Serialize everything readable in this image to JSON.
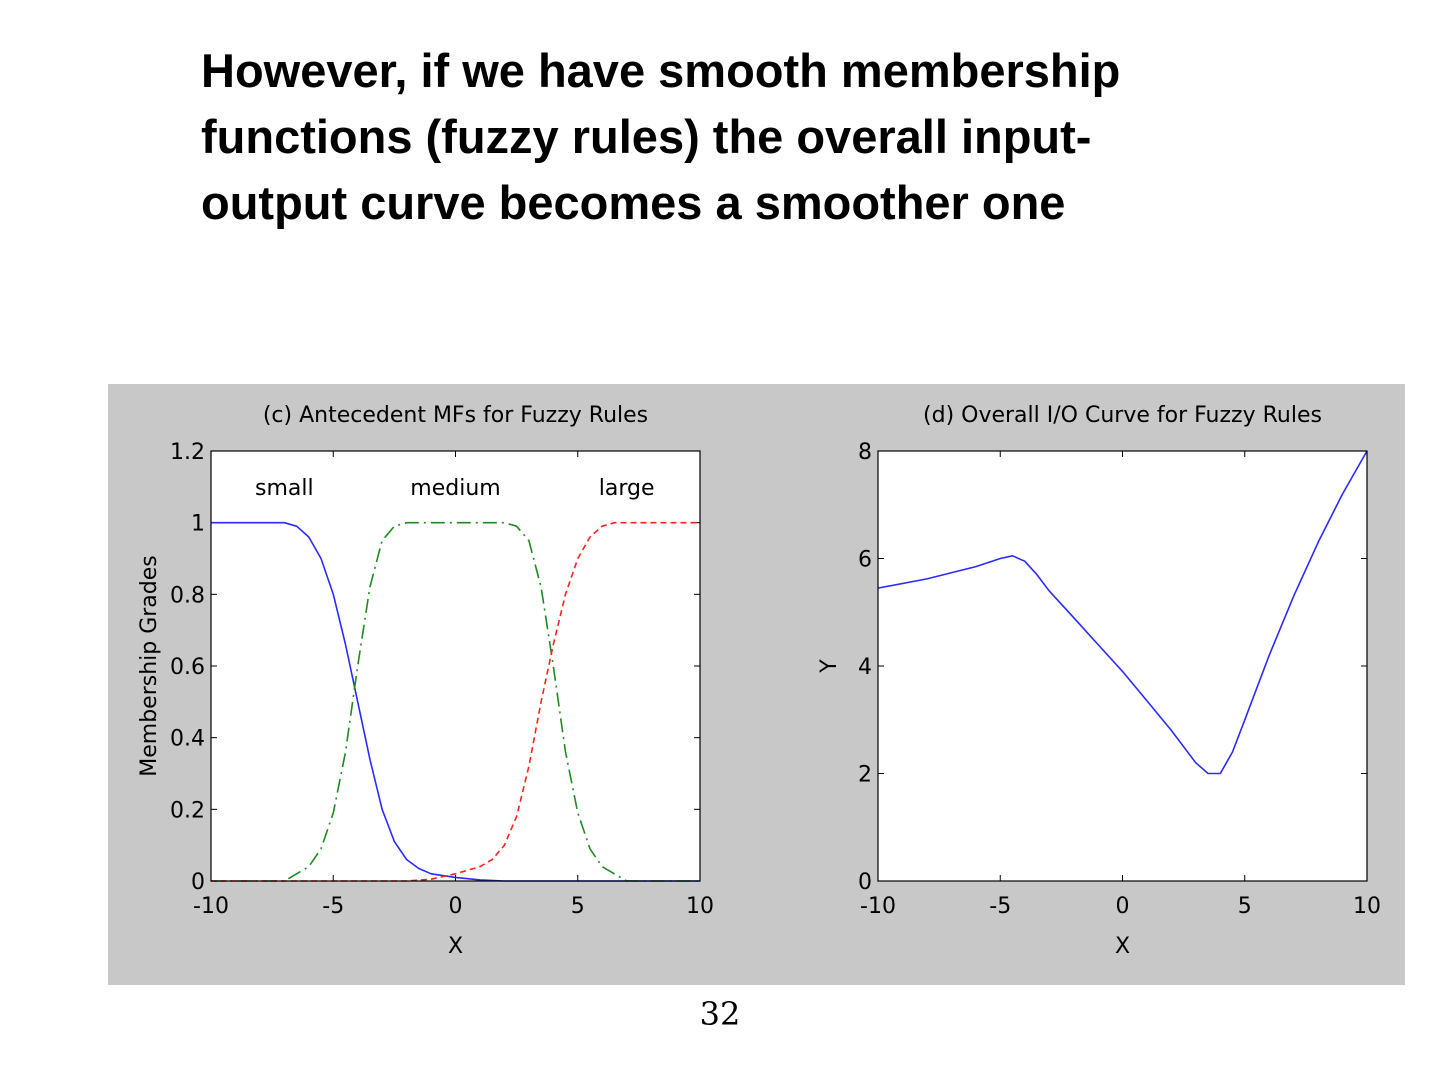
{
  "slide": {
    "title_lines": [
      "However, if we have smooth membership",
      "functions (fuzzy rules) the overall input-",
      "output curve becomes a smoother one"
    ],
    "page_number": "32"
  },
  "colors": {
    "panel_background": "#c8c8c8",
    "plot_background": "#ffffff",
    "small": "#2b2bff",
    "medium": "#1f8a1f",
    "large": "#ff2020",
    "io_curve": "#2b2bff"
  },
  "chart_data": [
    {
      "type": "line",
      "title": "(c) Antecedent MFs for Fuzzy Rules",
      "xlabel": "X",
      "ylabel": "Membership Grades",
      "xlim": [
        -10,
        10
      ],
      "ylim": [
        0,
        1.2
      ],
      "xticks": [
        -10,
        -5,
        0,
        5,
        10
      ],
      "yticks": [
        0,
        0.2,
        0.4,
        0.6,
        0.8,
        1,
        1.2
      ],
      "xtick_labels": [
        "-10",
        "-5",
        "0",
        "5",
        "10"
      ],
      "ytick_labels": [
        "0",
        "0.2",
        "0.4",
        "0.6",
        "0.8",
        "1",
        "1.2"
      ],
      "grid": false,
      "annotations": [
        {
          "text": "small",
          "x": -7,
          "y": 1.1
        },
        {
          "text": "medium",
          "x": 0,
          "y": 1.1
        },
        {
          "text": "large",
          "x": 7,
          "y": 1.1
        }
      ],
      "series": [
        {
          "style": "solid",
          "color": "#2b2bff",
          "x": [
            -10,
            -7,
            -6.5,
            -6,
            -5.5,
            -5,
            -4.5,
            -4,
            -3.5,
            -3,
            -2.5,
            -2,
            -1.5,
            -1,
            0,
            1,
            2,
            10
          ],
          "y": [
            1,
            1,
            0.99,
            0.96,
            0.9,
            0.8,
            0.66,
            0.5,
            0.34,
            0.2,
            0.11,
            0.06,
            0.035,
            0.02,
            0.01,
            0.003,
            0,
            0
          ]
        },
        {
          "style": "dashdot",
          "color": "#1f8a1f",
          "x": [
            -10,
            -7,
            -6,
            -5.5,
            -5,
            -4.5,
            -4,
            -3.5,
            -3,
            -2.5,
            -2,
            -1.5,
            1.5,
            2,
            2.5,
            3,
            3.5,
            4,
            4.5,
            5,
            5.5,
            6,
            7,
            10
          ],
          "y": [
            0,
            0,
            0.04,
            0.09,
            0.19,
            0.36,
            0.6,
            0.82,
            0.95,
            0.99,
            1,
            1,
            1,
            1,
            0.99,
            0.95,
            0.82,
            0.6,
            0.36,
            0.19,
            0.09,
            0.04,
            0,
            0
          ]
        },
        {
          "style": "dashed",
          "color": "#ff2020",
          "x": [
            -10,
            -2,
            -1,
            0,
            1,
            1.5,
            2,
            2.5,
            3,
            3.5,
            4,
            4.5,
            5,
            5.5,
            6,
            6.5,
            7,
            10
          ],
          "y": [
            0,
            0,
            0.005,
            0.02,
            0.04,
            0.06,
            0.1,
            0.18,
            0.32,
            0.5,
            0.66,
            0.8,
            0.9,
            0.96,
            0.99,
            1,
            1,
            1
          ]
        }
      ]
    },
    {
      "type": "line",
      "title": "(d) Overall I/O Curve for Fuzzy Rules",
      "xlabel": "X",
      "ylabel": "Y",
      "xlim": [
        -10,
        10
      ],
      "ylim": [
        0,
        8
      ],
      "xticks": [
        -10,
        -5,
        0,
        5,
        10
      ],
      "yticks": [
        0,
        2,
        4,
        6,
        8
      ],
      "xtick_labels": [
        "-10",
        "-5",
        "0",
        "5",
        "10"
      ],
      "ytick_labels": [
        "0",
        "2",
        "4",
        "6",
        "8"
      ],
      "grid": false,
      "series": [
        {
          "style": "solid",
          "color": "#2b2bff",
          "x": [
            -10,
            -8,
            -6,
            -5,
            -4.5,
            -4,
            -3.5,
            -3,
            -2,
            -1,
            0,
            1,
            2,
            3,
            3.5,
            4,
            4.5,
            5,
            6,
            7,
            8,
            9,
            10
          ],
          "y": [
            5.45,
            5.62,
            5.85,
            6.0,
            6.05,
            5.95,
            5.7,
            5.4,
            4.9,
            4.4,
            3.9,
            3.35,
            2.8,
            2.2,
            2.0,
            2.0,
            2.4,
            3.0,
            4.2,
            5.3,
            6.3,
            7.2,
            8.0
          ]
        }
      ]
    }
  ]
}
